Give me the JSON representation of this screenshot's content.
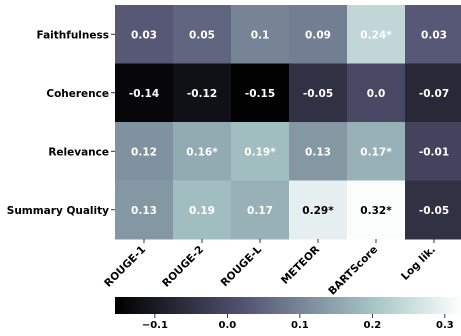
{
  "chart_data": {
    "type": "heatmap",
    "rows": [
      "Faithfulness",
      "Coherence",
      "Relevance",
      "Summary Quality"
    ],
    "columns": [
      "ROUGE-1",
      "ROUGE-2",
      "ROUGE-L",
      "METEOR",
      "BARTScore",
      "Log lik."
    ],
    "values": [
      [
        0.03,
        0.05,
        0.1,
        0.09,
        0.24,
        0.03
      ],
      [
        -0.14,
        -0.12,
        -0.15,
        -0.05,
        0.0,
        -0.07
      ],
      [
        0.12,
        0.16,
        0.19,
        0.13,
        0.17,
        -0.01
      ],
      [
        0.13,
        0.19,
        0.17,
        0.29,
        0.32,
        -0.05
      ]
    ],
    "labels": [
      [
        "0.03",
        "0.05",
        "0.1",
        "0.09",
        "0.24*",
        "0.03"
      ],
      [
        "-0.14",
        "-0.12",
        "-0.15",
        "-0.05",
        "0.0",
        "-0.07"
      ],
      [
        "0.12",
        "0.16*",
        "0.19*",
        "0.13",
        "0.17*",
        "-0.01"
      ],
      [
        "0.13",
        "0.19",
        "0.17",
        "0.29*",
        "0.32*",
        "-0.05"
      ]
    ],
    "colorbar": {
      "vmin": -0.155,
      "vmax": 0.325,
      "ticks": [
        -0.1,
        0.0,
        0.1,
        0.2,
        0.3
      ],
      "tick_labels": [
        "−0.1",
        "0.0",
        "0.1",
        "0.2",
        "0.3"
      ],
      "colormap": "bone"
    }
  }
}
